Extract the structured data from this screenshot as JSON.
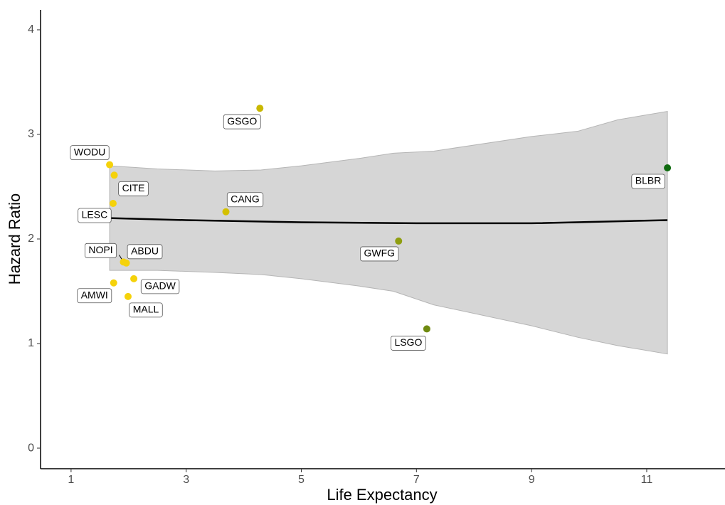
{
  "chart_data": {
    "type": "scatter",
    "x_label": "Life Expectancy",
    "y_label": "Hazard Ratio",
    "x": [
      4.28,
      1.67,
      1.75,
      1.73,
      3.69,
      1.91,
      1.96,
      2.09,
      1.74,
      1.99,
      6.69,
      7.18,
      11.36
    ],
    "values": [
      3.25,
      2.71,
      2.61,
      2.34,
      2.26,
      1.78,
      1.77,
      1.62,
      1.58,
      1.45,
      1.98,
      1.14,
      2.68
    ],
    "labels": [
      "GSGO",
      "WODU",
      "CITE",
      "LESC",
      "CANG",
      "NOPI",
      "ABDU",
      "GADW",
      "AMWI",
      "MALL",
      "GWFG",
      "LSGO",
      "BLBR"
    ],
    "colors": [
      "#c9b800",
      "#f5d20a",
      "#f5d20a",
      "#f5d20a",
      "#d4c000",
      "#f5d20a",
      "#f5d20a",
      "#f5d20a",
      "#f5d20a",
      "#f5d20a",
      "#8f9e10",
      "#6f8a10",
      "#0f6b0f"
    ],
    "fit": {
      "x": [
        1.67,
        3,
        5,
        7,
        9,
        11.36
      ],
      "values": [
        2.2,
        2.18,
        2.16,
        2.15,
        2.15,
        2.18
      ]
    },
    "band": {
      "x": [
        1.67,
        2.5,
        3.5,
        4.3,
        5,
        6,
        6.6,
        7.3,
        9,
        9.8,
        10.5,
        11.36
      ],
      "upper": [
        2.7,
        2.67,
        2.65,
        2.66,
        2.7,
        2.77,
        2.82,
        2.84,
        2.98,
        3.03,
        3.14,
        3.22
      ],
      "lower": [
        1.7,
        1.7,
        1.68,
        1.66,
        1.62,
        1.55,
        1.5,
        1.37,
        1.17,
        1.06,
        0.98,
        0.9
      ]
    },
    "xlim": [
      0.47,
      12.36
    ],
    "ylim": [
      -0.197,
      4.19
    ],
    "xticks": [
      1,
      3,
      5,
      7,
      9,
      11
    ],
    "yticks": [
      0,
      1,
      2,
      3,
      4
    ]
  }
}
